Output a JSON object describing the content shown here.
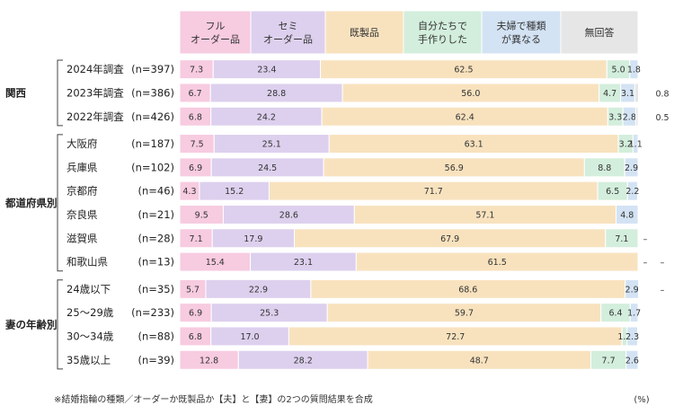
{
  "chart_data": {
    "type": "bar",
    "stacked": true,
    "orientation": "horizontal",
    "categories_header": [
      {
        "name": "フル\nオーダー品",
        "color": "#f7cbe0"
      },
      {
        "name": "セミ\nオーダー品",
        "color": "#ddd0ee"
      },
      {
        "name": "既製品",
        "color": "#f8e2be"
      },
      {
        "name": "自分たちで\n手作りした",
        "color": "#d3eedc"
      },
      {
        "name": "夫婦で種類\nが異なる",
        "color": "#d3e3f4"
      },
      {
        "name": "無回答",
        "color": "#e6e6e6"
      }
    ],
    "groups": [
      {
        "name": "関西",
        "rows": [
          {
            "label": "2024年調査",
            "n": "(n=397)",
            "values": [
              7.3,
              23.4,
              62.5,
              5.0,
              1.8,
              0
            ],
            "labels": [
              "7.3",
              "23.4",
              "62.5",
              "5.0",
              "1.8",
              ""
            ],
            "extra": "",
            "extra2": ""
          },
          {
            "label": "2023年調査",
            "n": "(n=386)",
            "values": [
              6.7,
              28.8,
              56.0,
              4.7,
              3.1,
              0.8
            ],
            "labels": [
              "6.7",
              "28.8",
              "56.0",
              "4.7",
              "3.1",
              ""
            ],
            "extra": "",
            "extra2": "0.8"
          },
          {
            "label": "2022年調査",
            "n": "(n=426)",
            "values": [
              6.8,
              24.2,
              62.4,
              3.3,
              2.8,
              0.5
            ],
            "labels": [
              "6.8",
              "24.2",
              "62.4",
              "3.3",
              "2.8",
              ""
            ],
            "extra": "",
            "extra2": "0.5"
          }
        ]
      },
      {
        "name": "都道府県別",
        "rows": [
          {
            "label": "大阪府",
            "n": "(n=187)",
            "values": [
              7.5,
              25.1,
              63.1,
              3.2,
              1.1,
              0
            ],
            "labels": [
              "7.5",
              "25.1",
              "63.1",
              "3.2",
              "1.1",
              ""
            ],
            "extra": "",
            "extra2": ""
          },
          {
            "label": "兵庫県",
            "n": "(n=102)",
            "values": [
              6.9,
              24.5,
              56.9,
              8.8,
              2.9,
              0
            ],
            "labels": [
              "6.9",
              "24.5",
              "56.9",
              "8.8",
              "2.9",
              ""
            ],
            "extra": "",
            "extra2": ""
          },
          {
            "label": "京都府",
            "n": "(n=46)",
            "values": [
              4.3,
              15.2,
              71.7,
              6.5,
              2.2,
              0
            ],
            "labels": [
              "4.3",
              "15.2",
              "71.7",
              "6.5",
              "2.2",
              ""
            ],
            "extra": "",
            "extra2": ""
          },
          {
            "label": "奈良県",
            "n": "(n=21)",
            "values": [
              9.5,
              28.6,
              57.1,
              0,
              4.8,
              0
            ],
            "labels": [
              "9.5",
              "28.6",
              "57.1",
              "",
              "4.8",
              ""
            ],
            "extra": "",
            "extra2": ""
          },
          {
            "label": "滋賀県",
            "n": "(n=28)",
            "values": [
              7.1,
              17.9,
              67.9,
              7.1,
              0,
              0
            ],
            "labels": [
              "7.1",
              "17.9",
              "67.9",
              "7.1",
              "",
              ""
            ],
            "extra": "–",
            "extra2": ""
          },
          {
            "label": "和歌山県",
            "n": "(n=13)",
            "values": [
              15.4,
              23.1,
              61.5,
              0,
              0,
              0
            ],
            "labels": [
              "15.4",
              "23.1",
              "61.5",
              "",
              "",
              ""
            ],
            "extra": "–",
            "extra2": "–"
          }
        ]
      },
      {
        "name": "妻の年齢別",
        "rows": [
          {
            "label": "24歳以下",
            "n": "(n=35)",
            "values": [
              5.7,
              22.9,
              68.6,
              0,
              2.9,
              0
            ],
            "labels": [
              "5.7",
              "22.9",
              "68.6",
              "",
              "2.9",
              ""
            ],
            "extra": "",
            "extra2": "–"
          },
          {
            "label": "25～29歳",
            "n": "(n=233)",
            "values": [
              6.9,
              25.3,
              59.7,
              6.4,
              1.7,
              0
            ],
            "labels": [
              "6.9",
              "25.3",
              "59.7",
              "6.4",
              "1.7",
              ""
            ],
            "extra": "",
            "extra2": ""
          },
          {
            "label": "30～34歳",
            "n": "(n=88)",
            "values": [
              6.8,
              17.0,
              72.7,
              1.1,
              2.3,
              0
            ],
            "labels": [
              "6.8",
              "17.0",
              "72.7",
              "1.1",
              "2.3",
              ""
            ],
            "extra": "",
            "extra2": ""
          },
          {
            "label": "35歳以上",
            "n": "(n=39)",
            "values": [
              12.8,
              28.2,
              48.7,
              7.7,
              2.6,
              0
            ],
            "labels": [
              "12.8",
              "28.2",
              "48.7",
              "7.7",
              "2.6",
              ""
            ],
            "extra": "",
            "extra2": ""
          }
        ]
      }
    ],
    "xlim": [
      0,
      100
    ],
    "unit": "(%)",
    "note": "※結婚指輪の種類／オーダーか既製品か【夫】と【妻】の2つの質問結果を合成"
  }
}
